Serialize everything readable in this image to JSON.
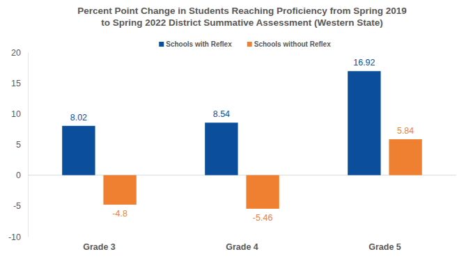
{
  "chart_data": {
    "type": "bar",
    "title": "Percent Point Change in Students Reaching Proficiency from Spring 2019\nto Spring 2022 District Summative Assessment (Western State)",
    "categories": [
      "Grade 3",
      "Grade 4",
      "Grade 5"
    ],
    "series": [
      {
        "name": "Schools with Reflex",
        "color": "#0b4e9b",
        "values": [
          8.02,
          8.54,
          16.92
        ]
      },
      {
        "name": "Schools without Reflex",
        "color": "#ef8031",
        "values": [
          -4.8,
          -5.46,
          5.84
        ]
      }
    ],
    "ylim": [
      -10,
      20
    ],
    "yticks": [
      -10,
      -5,
      0,
      5,
      10,
      15,
      20
    ],
    "grid": false,
    "legend": "top",
    "data_labels": true
  }
}
